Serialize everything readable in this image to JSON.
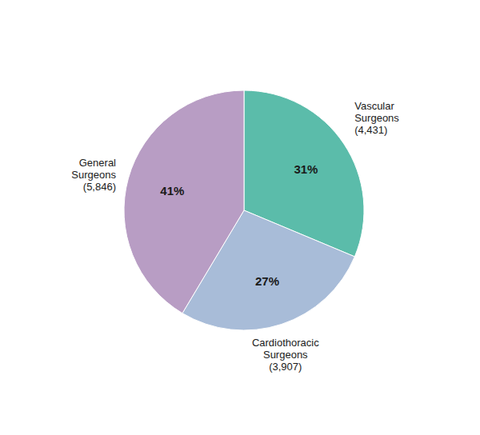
{
  "chart_data": {
    "type": "pie",
    "categories": [
      "Vascular\nSurgeons\n(4,431)",
      "Cardiothoracic\nSurgeons\n(3,907)",
      "General\nSurgeons\n(5,846)"
    ],
    "values": [
      31,
      27,
      41
    ],
    "value_labels": [
      "31%",
      "27%",
      "41%"
    ],
    "colors": [
      "#5bbcaa",
      "#a8bcd8",
      "#b89dc4"
    ],
    "data_labels": true
  }
}
